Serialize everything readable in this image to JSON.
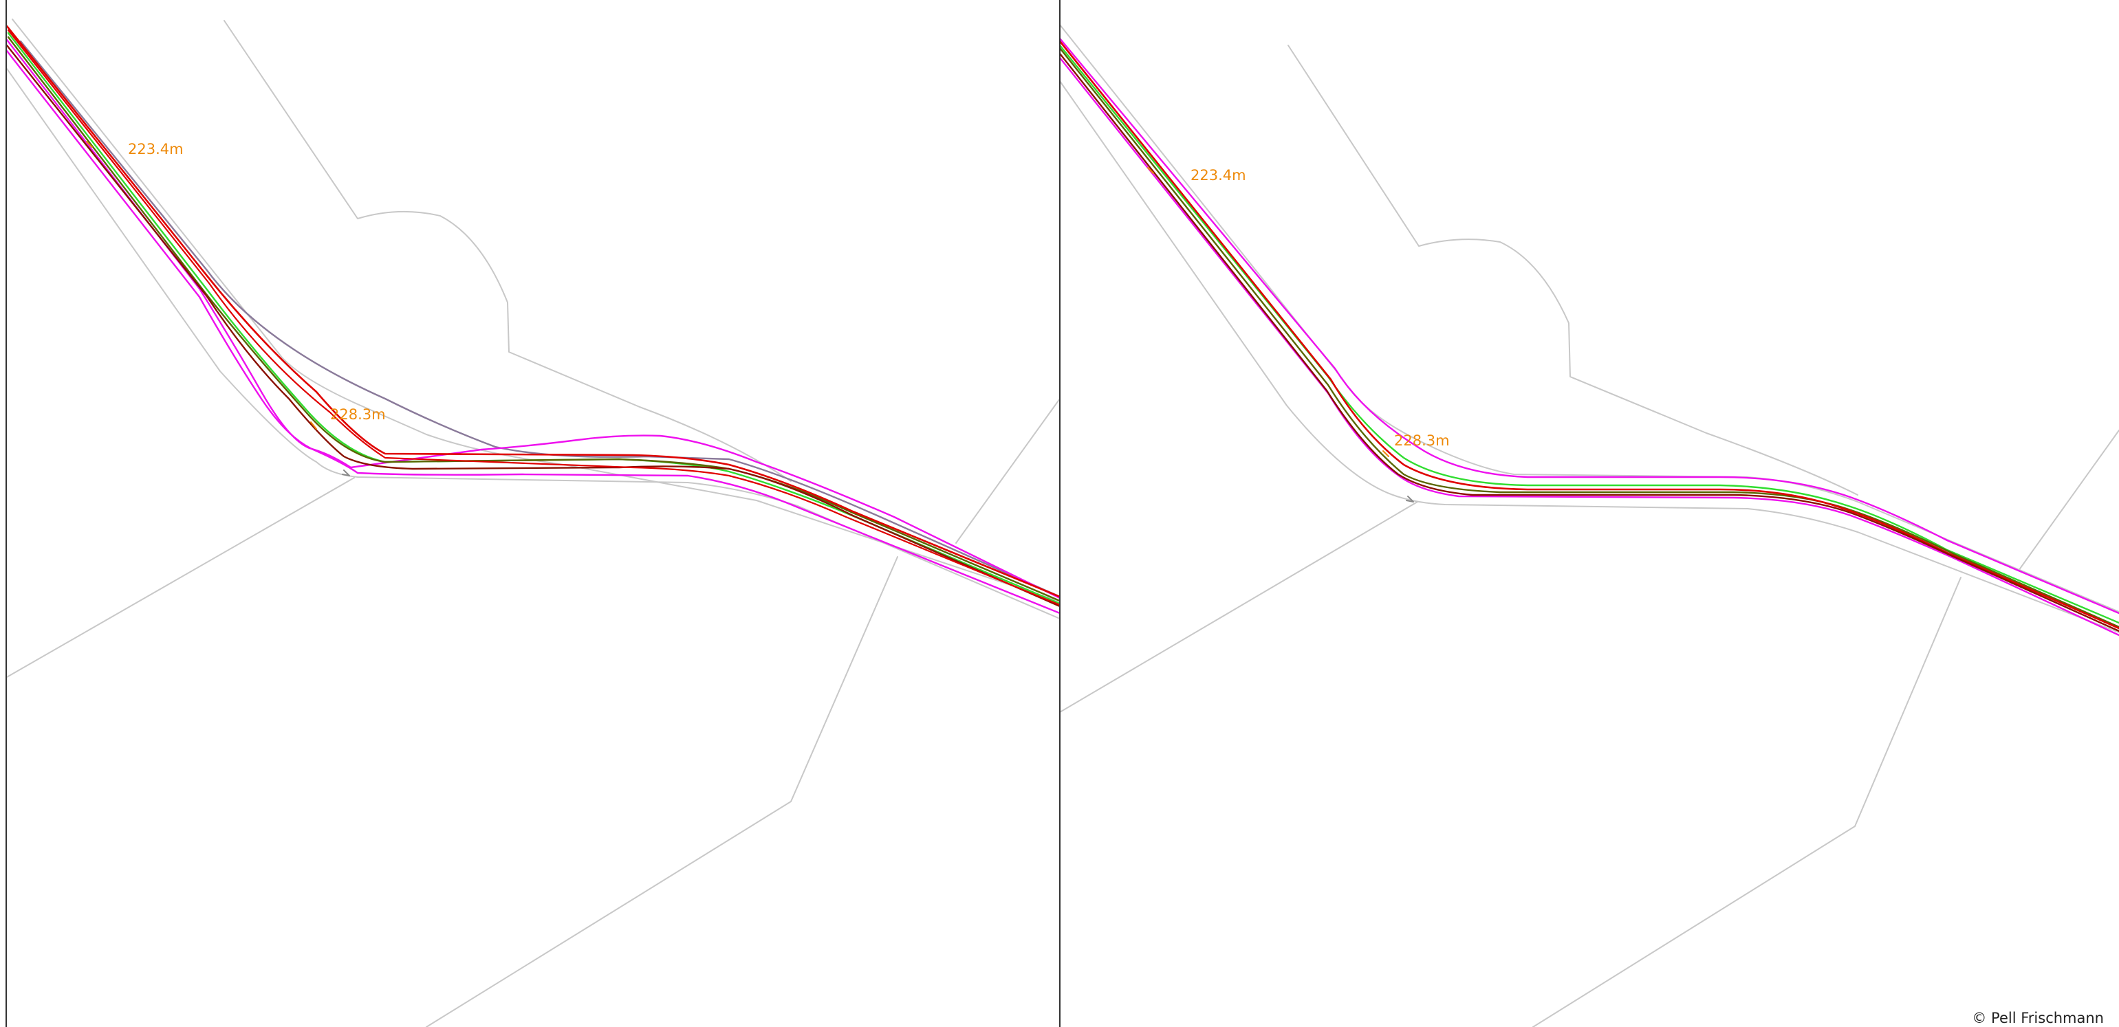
{
  "colors": {
    "background": "#ffffff",
    "boundary": "#c8c8c8",
    "red": "#e00000",
    "dark_red": "#8a1000",
    "magenta": "#ee10ee",
    "green": "#30dd30",
    "olive": "#5a6600",
    "grey_purple": "#8a7a9a",
    "label": "#ee8a0a"
  },
  "panels": [
    {
      "id": "left",
      "labels": {
        "elevation_top": "223.4m",
        "elevation_mid": "228.3m"
      }
    },
    {
      "id": "right",
      "labels": {
        "elevation_top": "223.4m",
        "elevation_mid": "228.3m"
      }
    }
  ],
  "footer": {
    "copyright": "© Pell Frischmann"
  },
  "icons": [
    "copyright-icon"
  ]
}
